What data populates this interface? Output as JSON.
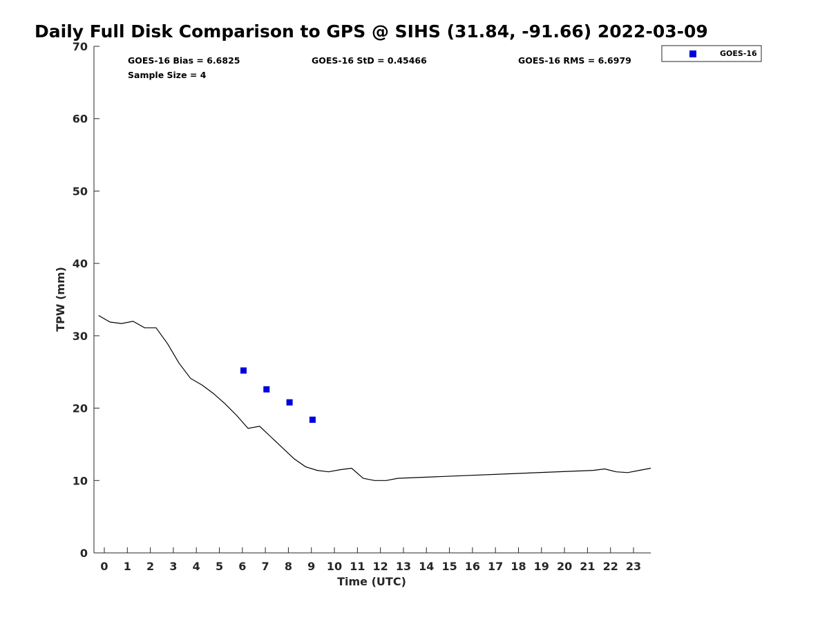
{
  "chart_data": {
    "type": "scatter",
    "title": "Daily Full Disk Comparison to GPS @ SIHS (31.84, -91.66) 2022-03-09",
    "xlabel": "Time (UTC)",
    "ylabel": "TPW (mm)",
    "xlim": [
      -0.45,
      23.75
    ],
    "ylim": [
      0,
      70
    ],
    "x_ticks": [
      0,
      1,
      2,
      3,
      4,
      5,
      6,
      7,
      8,
      9,
      10,
      11,
      12,
      13,
      14,
      15,
      16,
      17,
      18,
      19,
      20,
      21,
      22,
      23
    ],
    "y_ticks": [
      0,
      10,
      20,
      30,
      40,
      50,
      60,
      70
    ],
    "grid": false,
    "legend_position": "top-right",
    "stats": {
      "bias": "GOES-16 Bias = 6.6825",
      "std": "GOES-16 StD = 0.45466",
      "rms": "GOES-16 RMS = 6.6979",
      "sample": "Sample Size = 4"
    },
    "series": [
      {
        "kind": "line",
        "color": "#000000",
        "x": [
          -0.25,
          0.25,
          0.75,
          1.25,
          1.75,
          2.25,
          2.75,
          3.25,
          3.75,
          4.25,
          4.75,
          5.25,
          5.75,
          6.25,
          6.75,
          7.25,
          7.75,
          8.25,
          8.75,
          9.25,
          9.75,
          10.25,
          10.75,
          11.25,
          11.75,
          12.25,
          12.75,
          21.25,
          21.75,
          22.25,
          22.75,
          23.25,
          23.75
        ],
        "y": [
          32.8,
          31.9,
          31.7,
          32.0,
          31.1,
          31.1,
          28.9,
          26.2,
          24.1,
          23.2,
          22.0,
          20.6,
          19.0,
          17.2,
          17.5,
          16.0,
          14.5,
          13.0,
          11.9,
          11.4,
          11.2,
          11.5,
          11.7,
          10.3,
          10.0,
          10.0,
          10.3,
          11.4,
          11.6,
          11.2,
          11.1,
          11.4,
          11.7
        ]
      },
      {
        "name": "GOES-16",
        "kind": "scatter",
        "color": "#0000dd",
        "x": [
          6.05,
          7.05,
          8.05,
          9.05
        ],
        "y": [
          25.2,
          22.6,
          20.8,
          18.4
        ]
      }
    ]
  }
}
